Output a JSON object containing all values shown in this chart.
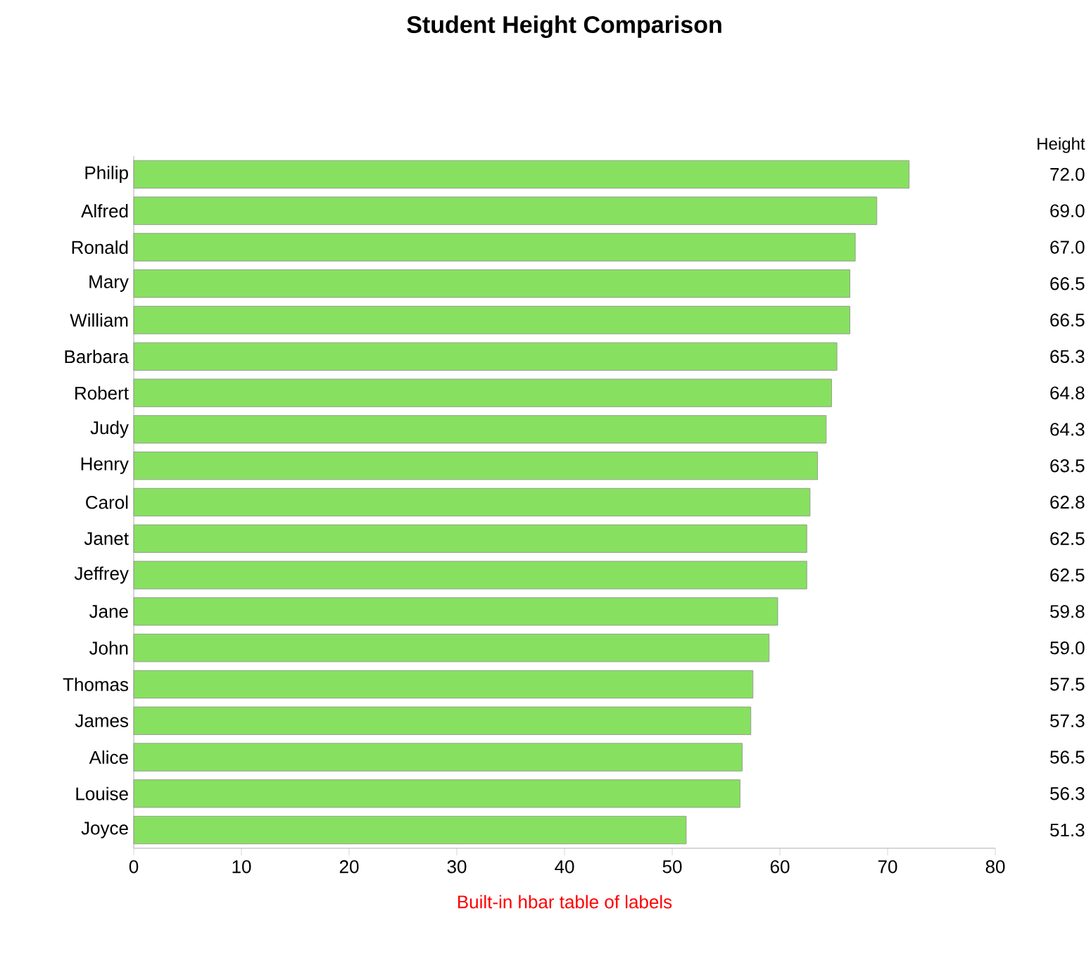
{
  "chart_data": {
    "type": "bar",
    "orientation": "horizontal",
    "title": "Student Height Comparison",
    "categories": [
      "Philip",
      "Alfred",
      "Ronald",
      "Mary",
      "William",
      "Barbara",
      "Robert",
      "Judy",
      "Henry",
      "Carol",
      "Janet",
      "Jeffrey",
      "Jane",
      "John",
      "Thomas",
      "James",
      "Alice",
      "Louise",
      "Joyce"
    ],
    "values": [
      72,
      69,
      67,
      66.5,
      66.5,
      65.3,
      64.8,
      64.3,
      63.5,
      62.8,
      62.5,
      62.5,
      59.8,
      59,
      57.5,
      57.3,
      56.5,
      56.3,
      51.3
    ],
    "value_labels": [
      "72.0",
      "69.0",
      "67.0",
      "66.5",
      "66.5",
      "65.3",
      "64.8",
      "64.3",
      "63.5",
      "62.8",
      "62.5",
      "62.5",
      "59.8",
      "59.0",
      "57.5",
      "57.3",
      "56.5",
      "56.3",
      "51.3"
    ],
    "color": "#88e060",
    "xlim": [
      0,
      80
    ],
    "xticks": [
      0,
      10,
      20,
      30,
      40,
      50,
      60,
      70,
      80
    ],
    "grid": false,
    "annotations": [
      "Height",
      "Built-in hbar table of labels"
    ]
  }
}
